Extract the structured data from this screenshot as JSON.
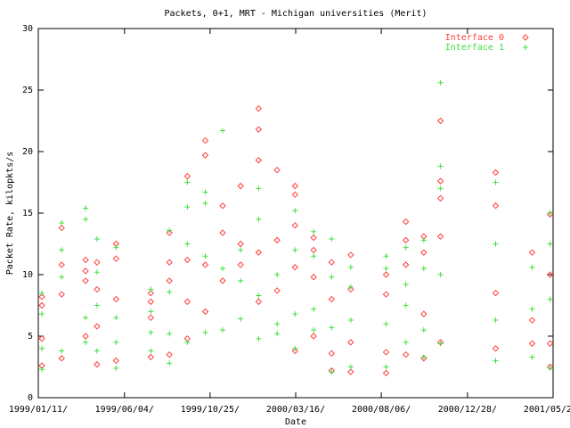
{
  "chart_data": {
    "type": "scatter",
    "title": "Packets, 0+1, MRT - Michigan universities (Merit)",
    "x_label": "Date",
    "y_label": "Packet Rate, kilopkts/s",
    "xlim": [
      "1999-01-11",
      "2001-05-20"
    ],
    "xticks": [
      {
        "value": "1999-01-11",
        "label": "1999/01/11/"
      },
      {
        "value": "1999-06-04",
        "label": "1999/06/04/"
      },
      {
        "value": "1999-10-25",
        "label": "1999/10/25/"
      },
      {
        "value": "2000-03-16",
        "label": "2000/03/16/"
      },
      {
        "value": "2000-08-06",
        "label": "2000/08/06/"
      },
      {
        "value": "2000-12-28",
        "label": "2000/12/28/"
      },
      {
        "value": "2001-05-20",
        "label": "2001/05/20/"
      }
    ],
    "ylim": [
      0,
      30
    ],
    "yticks": [
      0,
      5,
      10,
      15,
      20,
      25,
      30
    ],
    "legend": "top-right",
    "series": [
      {
        "name": "Interface 0",
        "color": "#ff4040",
        "marker": "diamond",
        "x": [
          "1999-01-17",
          "1999-01-17",
          "1999-01-17",
          "1999-01-17",
          "1999-02-19",
          "1999-02-19",
          "1999-02-19",
          "1999-02-19",
          "1999-03-31",
          "1999-03-31",
          "1999-03-31",
          "1999-03-31",
          "1999-04-19",
          "1999-04-19",
          "1999-04-19",
          "1999-04-19",
          "1999-05-21",
          "1999-05-21",
          "1999-05-21",
          "1999-05-21",
          "1999-07-18",
          "1999-07-18",
          "1999-07-18",
          "1999-07-18",
          "1999-08-18",
          "1999-08-18",
          "1999-08-18",
          "1999-08-18",
          "1999-09-17",
          "1999-09-17",
          "1999-09-17",
          "1999-09-17",
          "1999-10-17",
          "1999-10-17",
          "1999-10-17",
          "1999-10-17",
          "1999-11-15",
          "1999-11-15",
          "1999-11-15",
          "1999-12-15",
          "1999-12-15",
          "1999-12-15",
          "2000-01-14",
          "2000-01-14",
          "2000-01-14",
          "2000-01-14",
          "2000-01-14",
          "2000-02-14",
          "2000-02-14",
          "2000-02-14",
          "2000-03-15",
          "2000-03-15",
          "2000-03-15",
          "2000-03-15",
          "2000-03-15",
          "2000-04-15",
          "2000-04-15",
          "2000-04-15",
          "2000-04-15",
          "2000-05-15",
          "2000-05-15",
          "2000-05-15",
          "2000-05-15",
          "2000-06-16",
          "2000-06-16",
          "2000-06-16",
          "2000-06-16",
          "2000-08-14",
          "2000-08-14",
          "2000-08-14",
          "2000-08-14",
          "2000-09-16",
          "2000-09-16",
          "2000-09-16",
          "2000-09-16",
          "2000-10-16",
          "2000-10-16",
          "2000-10-16",
          "2000-10-16",
          "2000-11-13",
          "2000-11-13",
          "2000-11-13",
          "2000-11-13",
          "2000-11-13",
          "2001-02-13",
          "2001-02-13",
          "2001-02-13",
          "2001-02-13",
          "2001-04-15",
          "2001-04-15",
          "2001-04-15",
          "2001-05-15",
          "2001-05-15",
          "2001-05-15",
          "2001-05-15"
        ],
        "values": [
          2.6,
          4.8,
          7.5,
          8.2,
          3.2,
          8.4,
          10.8,
          13.8,
          5.0,
          9.5,
          10.3,
          11.2,
          2.7,
          5.8,
          8.8,
          11.0,
          3.0,
          8.0,
          11.3,
          12.5,
          3.3,
          6.5,
          7.8,
          8.5,
          3.5,
          9.5,
          11.0,
          13.4,
          4.8,
          7.8,
          11.2,
          18.0,
          7.0,
          10.8,
          19.7,
          20.9,
          9.5,
          13.4,
          15.6,
          10.8,
          12.5,
          17.2,
          7.8,
          11.8,
          19.3,
          21.8,
          23.5,
          8.7,
          12.8,
          18.5,
          3.8,
          10.6,
          14.0,
          16.5,
          17.2,
          5.0,
          9.8,
          12.0,
          13.0,
          2.2,
          3.6,
          8.0,
          11.0,
          2.1,
          4.5,
          8.8,
          11.6,
          2.0,
          3.7,
          8.4,
          10.0,
          3.5,
          10.8,
          12.8,
          14.3,
          3.2,
          6.8,
          11.8,
          13.1,
          4.5,
          13.1,
          16.2,
          17.6,
          22.5,
          4.0,
          8.5,
          15.6,
          18.3,
          4.4,
          6.3,
          11.8,
          2.5,
          4.4,
          10.0,
          14.9
        ]
      },
      {
        "name": "Interface 1",
        "color": "#40e040",
        "marker": "plus",
        "x": [
          "1999-01-17",
          "1999-01-17",
          "1999-01-17",
          "1999-01-17",
          "1999-02-19",
          "1999-02-19",
          "1999-02-19",
          "1999-02-19",
          "1999-03-31",
          "1999-03-31",
          "1999-03-31",
          "1999-03-31",
          "1999-04-19",
          "1999-04-19",
          "1999-04-19",
          "1999-04-19",
          "1999-05-21",
          "1999-05-21",
          "1999-05-21",
          "1999-05-21",
          "1999-07-18",
          "1999-07-18",
          "1999-07-18",
          "1999-07-18",
          "1999-08-18",
          "1999-08-18",
          "1999-08-18",
          "1999-08-18",
          "1999-09-17",
          "1999-09-17",
          "1999-09-17",
          "1999-09-17",
          "1999-10-17",
          "1999-10-17",
          "1999-10-17",
          "1999-10-17",
          "1999-11-15",
          "1999-11-15",
          "1999-11-15",
          "1999-12-15",
          "1999-12-15",
          "1999-12-15",
          "2000-01-14",
          "2000-01-14",
          "2000-01-14",
          "2000-01-14",
          "2000-02-14",
          "2000-02-14",
          "2000-02-14",
          "2000-03-15",
          "2000-03-15",
          "2000-03-15",
          "2000-03-15",
          "2000-04-15",
          "2000-04-15",
          "2000-04-15",
          "2000-04-15",
          "2000-05-15",
          "2000-05-15",
          "2000-05-15",
          "2000-05-15",
          "2000-06-16",
          "2000-06-16",
          "2000-06-16",
          "2000-06-16",
          "2000-08-14",
          "2000-08-14",
          "2000-08-14",
          "2000-08-14",
          "2000-09-16",
          "2000-09-16",
          "2000-09-16",
          "2000-09-16",
          "2000-10-16",
          "2000-10-16",
          "2000-10-16",
          "2000-10-16",
          "2000-11-13",
          "2000-11-13",
          "2000-11-13",
          "2000-11-13",
          "2000-11-13",
          "2001-02-13",
          "2001-02-13",
          "2001-02-13",
          "2001-02-13",
          "2001-04-15",
          "2001-04-15",
          "2001-04-15",
          "2001-05-15",
          "2001-05-15",
          "2001-05-15",
          "2001-05-15"
        ],
        "values": [
          2.3,
          4.0,
          6.8,
          8.5,
          3.8,
          9.8,
          12.0,
          14.2,
          4.5,
          6.5,
          14.5,
          15.4,
          3.8,
          7.5,
          10.2,
          12.9,
          2.4,
          4.5,
          6.5,
          12.2,
          3.8,
          5.3,
          7.0,
          8.8,
          2.8,
          5.2,
          8.6,
          13.6,
          4.5,
          12.5,
          15.5,
          17.5,
          5.3,
          11.5,
          15.8,
          16.7,
          5.5,
          10.5,
          21.7,
          6.4,
          9.5,
          12.0,
          4.8,
          8.3,
          14.5,
          17.0,
          5.2,
          6.0,
          10.0,
          4.0,
          6.8,
          12.0,
          15.2,
          5.5,
          7.2,
          11.5,
          13.5,
          2.1,
          5.7,
          9.8,
          12.9,
          2.5,
          6.3,
          9.0,
          10.6,
          2.5,
          6.0,
          10.5,
          11.5,
          4.5,
          7.5,
          9.2,
          12.2,
          3.3,
          5.5,
          10.5,
          12.8,
          4.4,
          10.0,
          17.0,
          18.8,
          25.6,
          3.0,
          6.3,
          12.5,
          17.5,
          3.3,
          7.2,
          10.6,
          2.4,
          8.0,
          12.5,
          15.0
        ]
      }
    ]
  }
}
